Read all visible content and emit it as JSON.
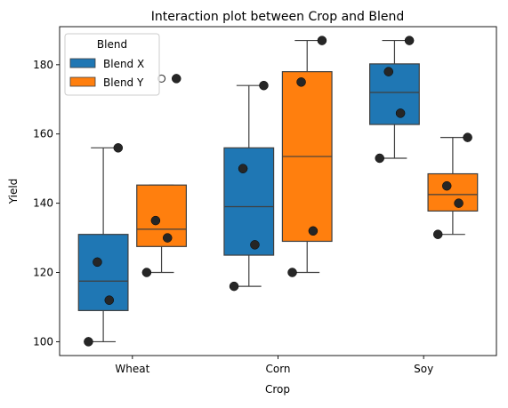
{
  "chart_data": {
    "type": "box",
    "title": "Interaction plot between Crop and Blend",
    "xlabel": "Crop",
    "ylabel": "Yield",
    "categories": [
      "Wheat",
      "Corn",
      "Soy"
    ],
    "ylim": [
      96,
      191
    ],
    "yticks": [
      100,
      120,
      140,
      160,
      180
    ],
    "legend": {
      "title": "Blend",
      "placement": "top-left"
    },
    "series": [
      {
        "name": "Blend X",
        "color": "#1f77b4",
        "boxes": [
          {
            "category": "Wheat",
            "q1": 109,
            "median": 117.5,
            "q3": 131,
            "whisker_low": 100,
            "whisker_high": 156,
            "fliers": []
          },
          {
            "category": "Corn",
            "q1": 125,
            "median": 139,
            "q3": 156,
            "whisker_low": 116,
            "whisker_high": 174,
            "fliers": []
          },
          {
            "category": "Soy",
            "q1": 162.75,
            "median": 172,
            "q3": 180.25,
            "whisker_low": 153,
            "whisker_high": 187,
            "fliers": []
          }
        ],
        "points": [
          {
            "category": "Wheat",
            "values": [
              100,
              112,
              123,
              156
            ]
          },
          {
            "category": "Corn",
            "values": [
              116,
              128,
              150,
              174
            ]
          },
          {
            "category": "Soy",
            "values": [
              153,
              166,
              178,
              187
            ]
          }
        ]
      },
      {
        "name": "Blend Y",
        "color": "#ff7f0e",
        "boxes": [
          {
            "category": "Wheat",
            "q1": 127.5,
            "median": 132.5,
            "q3": 145.25,
            "whisker_low": 120,
            "whisker_high": 145.25,
            "fliers": [
              176
            ]
          },
          {
            "category": "Corn",
            "q1": 129,
            "median": 153.5,
            "q3": 178,
            "whisker_low": 120,
            "whisker_high": 187,
            "fliers": []
          },
          {
            "category": "Soy",
            "q1": 137.75,
            "median": 142.5,
            "q3": 148.5,
            "whisker_low": 131,
            "whisker_high": 159,
            "fliers": []
          }
        ],
        "points": [
          {
            "category": "Wheat",
            "values": [
              120,
              130,
              135,
              176
            ]
          },
          {
            "category": "Corn",
            "values": [
              120,
              132,
              175,
              187
            ]
          },
          {
            "category": "Soy",
            "values": [
              131,
              140,
              145,
              159
            ]
          }
        ]
      }
    ]
  }
}
